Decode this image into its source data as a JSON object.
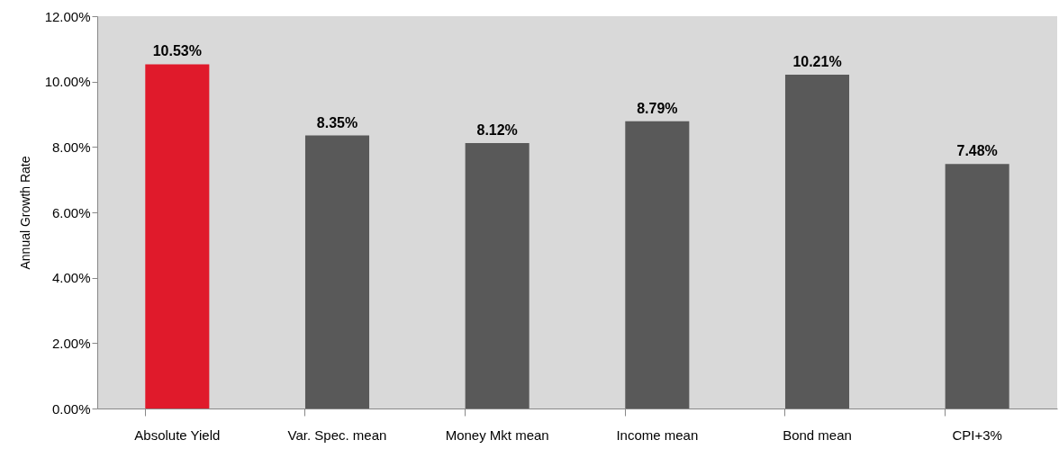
{
  "chart_data": {
    "type": "bar",
    "ylabel": "Annual Growth Rate",
    "categories": [
      "Absolute Yield",
      "Var. Spec. mean",
      "Money Mkt mean",
      "Income mean",
      "Bond mean",
      "CPI+3%"
    ],
    "values": [
      10.53,
      8.35,
      8.12,
      8.79,
      10.21,
      7.48
    ],
    "colors": [
      "#e01a2b",
      "#595959",
      "#595959",
      "#595959",
      "#595959",
      "#595959"
    ],
    "value_labels": [
      "10.53%",
      "8.35%",
      "8.12%",
      "8.79%",
      "10.21%",
      "7.48%"
    ],
    "ylim": [
      0,
      12
    ],
    "yticks": [
      {
        "value": 0,
        "label": "0.00%"
      },
      {
        "value": 2,
        "label": "2.00%"
      },
      {
        "value": 4,
        "label": "4.00%"
      },
      {
        "value": 6,
        "label": "6.00%"
      },
      {
        "value": 8,
        "label": "8.00%"
      },
      {
        "value": 10,
        "label": "10.00%"
      },
      {
        "value": 12,
        "label": "12.00%"
      }
    ],
    "grid": false
  }
}
